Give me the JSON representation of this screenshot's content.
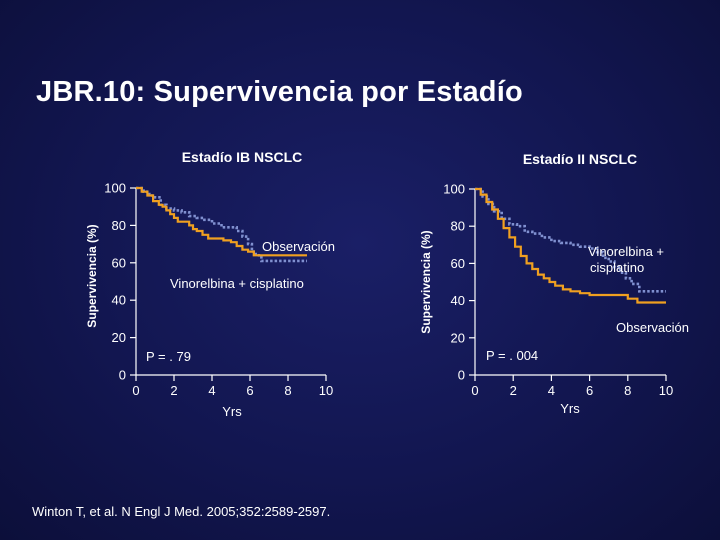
{
  "title": "JBR.10: Supervivencia por Estadío",
  "citation": "Winton T, et al. N Engl J Med. 2005;352:2589-2597.",
  "colors": {
    "observacion": "#f0a020",
    "vinorelbina": "#8090d0",
    "axis": "#ffffff"
  },
  "chart_data": [
    {
      "type": "line",
      "title": "Estadío IB NSCLC",
      "xlabel": "Yrs",
      "ylabel": "Supervivencia (%)",
      "xlim": [
        0,
        10
      ],
      "ylim": [
        0,
        100
      ],
      "xticks": [
        0,
        2,
        4,
        6,
        8,
        10
      ],
      "yticks": [
        0,
        20,
        40,
        60,
        80,
        100
      ],
      "series": [
        {
          "name": "Observación",
          "style": "solid",
          "x": [
            0,
            0.3,
            0.6,
            0.9,
            1.2,
            1.4,
            1.6,
            1.8,
            2.0,
            2.2,
            2.5,
            2.8,
            3.0,
            3.2,
            3.5,
            3.8,
            4.2,
            4.6,
            5.0,
            5.3,
            5.6,
            5.9,
            6.2,
            9.0
          ],
          "y": [
            100,
            98,
            96,
            93,
            91,
            90,
            88,
            86,
            84,
            82,
            82,
            80,
            78,
            77,
            75,
            73,
            73,
            72,
            71,
            69,
            67,
            66,
            64,
            64
          ]
        },
        {
          "name": "Vinorelbina + cisplatino",
          "style": "dotted",
          "x": [
            0,
            0.4,
            0.7,
            1.0,
            1.3,
            1.6,
            2.0,
            2.4,
            2.8,
            3.2,
            3.6,
            4.0,
            4.5,
            5.0,
            5.3,
            5.6,
            5.9,
            6.1,
            6.3,
            6.6,
            9.0
          ],
          "y": [
            100,
            98,
            96,
            95,
            91,
            89,
            88,
            87,
            85,
            84,
            83,
            81,
            79,
            79,
            77,
            74,
            70,
            66,
            64,
            61,
            61
          ]
        }
      ],
      "annotations": [
        "Observación",
        "Vinorelbina + cisplatino",
        "P = . 79"
      ]
    },
    {
      "type": "line",
      "title": "Estadío II NSCLC",
      "xlabel": "Yrs",
      "ylabel": "Supervivencia (%)",
      "xlim": [
        0,
        10
      ],
      "ylim": [
        0,
        100
      ],
      "xticks": [
        0,
        2,
        4,
        6,
        8,
        10
      ],
      "yticks": [
        0,
        20,
        40,
        60,
        80,
        100
      ],
      "series": [
        {
          "name": "Observación",
          "style": "solid",
          "x": [
            0,
            0.3,
            0.6,
            0.9,
            1.2,
            1.5,
            1.8,
            2.1,
            2.4,
            2.7,
            3.0,
            3.3,
            3.6,
            3.9,
            4.2,
            4.6,
            5.0,
            5.5,
            6.0,
            7.0,
            8.0,
            8.5,
            10.0
          ],
          "y": [
            100,
            97,
            93,
            89,
            84,
            79,
            74,
            69,
            64,
            60,
            57,
            54,
            52,
            50,
            48,
            46,
            45,
            44,
            43,
            43,
            41,
            39,
            39
          ]
        },
        {
          "name": "Vinorelbina + cisplatino",
          "style": "dotted",
          "x": [
            0,
            0.4,
            0.7,
            1.0,
            1.4,
            1.8,
            2.2,
            2.6,
            3.0,
            3.5,
            4.0,
            4.5,
            5.0,
            5.5,
            6.0,
            6.4,
            6.7,
            7.0,
            7.3,
            7.6,
            7.9,
            8.2,
            8.6,
            10.0
          ],
          "y": [
            100,
            96,
            92,
            88,
            84,
            81,
            80,
            77,
            76,
            74,
            72,
            71,
            70,
            69,
            68,
            66,
            63,
            61,
            58,
            55,
            52,
            49,
            45,
            45
          ]
        }
      ],
      "annotations": [
        "Vinorelbina + cisplatino",
        "Observación",
        "P = . 004"
      ]
    }
  ]
}
